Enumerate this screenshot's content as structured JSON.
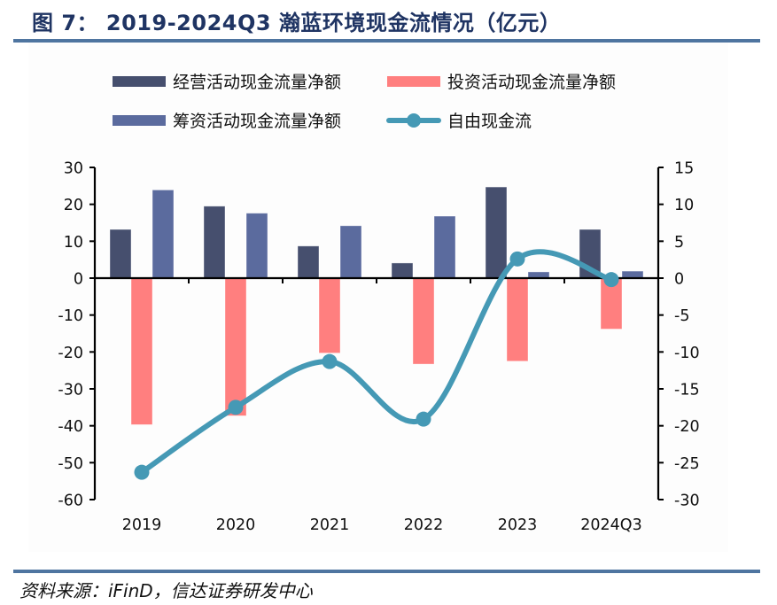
{
  "header": {
    "title": "图 7：  2019-2024Q3 瀚蓝环境现金流情况（亿元）"
  },
  "footer": {
    "source": "资料来源：iFinD，信达证券研发中心"
  },
  "colors": {
    "operating": "#464f6e",
    "investing": "#ff7f7f",
    "financing": "#5b6b9e",
    "fcf": "#4599b5",
    "axis": "#000000",
    "title": "#1f3463",
    "rule": "#4f75a0"
  },
  "chart_data": {
    "type": "bar",
    "title": "2019-2024Q3 瀚蓝环境现金流情况（亿元）",
    "categories": [
      "2019",
      "2020",
      "2021",
      "2022",
      "2023",
      "2024Q3"
    ],
    "series": [
      {
        "name": "经营活动现金流量净额",
        "type": "bar",
        "axis": "left",
        "color": "#464f6e",
        "values": [
          13.2,
          19.5,
          8.7,
          4.1,
          24.7,
          13.2
        ]
      },
      {
        "name": "投资活动现金流量净额",
        "type": "bar",
        "axis": "left",
        "color": "#ff7f7f",
        "values": [
          -39.7,
          -37.3,
          -20.3,
          -23.3,
          -22.5,
          -13.8
        ]
      },
      {
        "name": "筹资活动现金流量净额",
        "type": "bar",
        "axis": "left",
        "color": "#5b6b9e",
        "values": [
          23.9,
          17.6,
          14.2,
          16.8,
          1.7,
          1.9
        ]
      },
      {
        "name": "自由现金流",
        "type": "line",
        "smooth": true,
        "markers": true,
        "axis": "right",
        "color": "#4599b5",
        "values": [
          -26.3,
          -17.5,
          -11.3,
          -19.1,
          2.6,
          -0.2
        ]
      }
    ],
    "left_axis": {
      "ylim": [
        -60,
        30
      ],
      "ticks": [
        30,
        20,
        10,
        0,
        -10,
        -20,
        -30,
        -40,
        -50,
        -60
      ]
    },
    "right_axis": {
      "ylim": [
        -30,
        15
      ],
      "ticks": [
        15,
        10,
        5,
        0,
        -5,
        -10,
        -15,
        -20,
        -25,
        -30
      ]
    },
    "xlabel": "",
    "ylabel": "",
    "grid": false,
    "legend": {
      "placement": "top",
      "entries": [
        "经营活动现金流量净额",
        "投资活动现金流量净额",
        "筹资活动现金流量净额",
        "自由现金流"
      ]
    }
  }
}
